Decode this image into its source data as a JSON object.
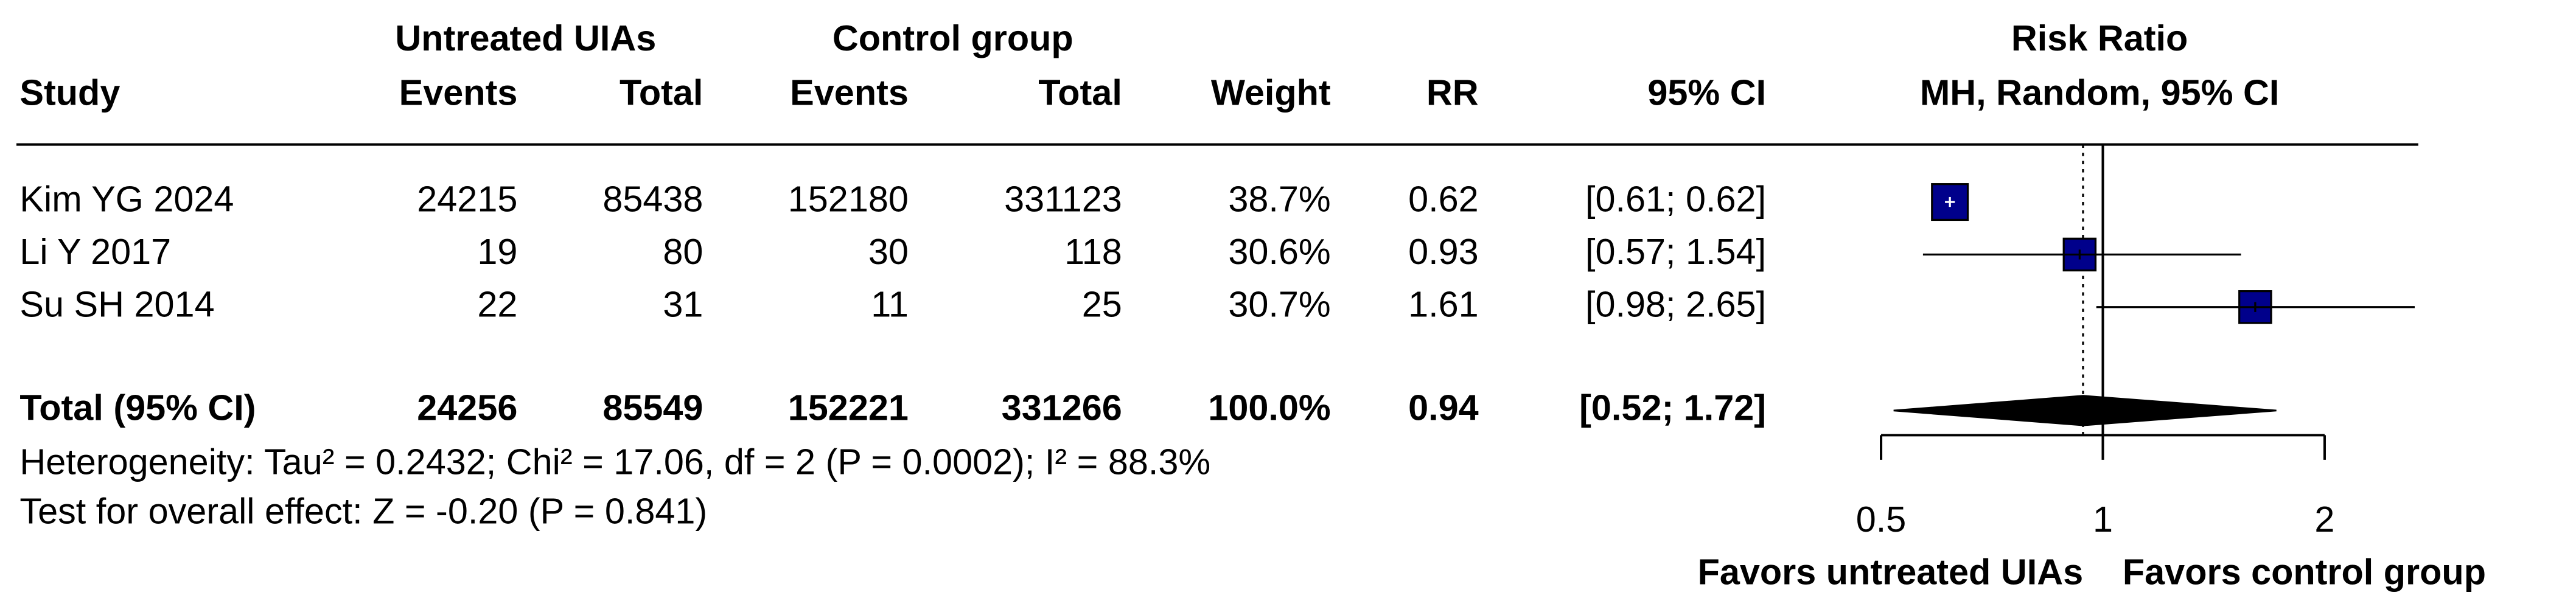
{
  "chart_data": {
    "type": "forest",
    "group_headers": [
      "Untreated UIAs",
      "Control group",
      "Risk Ratio"
    ],
    "columns": [
      "Study",
      "Events",
      "Total",
      "Events",
      "Total",
      "Weight",
      "RR",
      "95% CI",
      "MH, Random, 95% CI"
    ],
    "studies": [
      {
        "study": "Kim YG 2024",
        "events_1": 24215,
        "total_1": 85438,
        "events_2": 152180,
        "total_2": 331123,
        "weight": 38.7,
        "weight_label": "38.7%",
        "rr": 0.62,
        "ci": [
          0.61,
          0.62
        ],
        "ci_label": "[0.61; 0.62]"
      },
      {
        "study": "Li Y 2017",
        "events_1": 19,
        "total_1": 80,
        "events_2": 30,
        "total_2": 118,
        "weight": 30.6,
        "weight_label": "30.6%",
        "rr": 0.93,
        "ci": [
          0.57,
          1.54
        ],
        "ci_label": "[0.57; 1.54]"
      },
      {
        "study": "Su SH 2014",
        "events_1": 22,
        "total_1": 31,
        "events_2": 11,
        "total_2": 25,
        "weight": 30.7,
        "weight_label": "30.7%",
        "rr": 1.61,
        "ci": [
          0.98,
          2.65
        ],
        "ci_label": "[0.98; 2.65]"
      }
    ],
    "total": {
      "study": "Total (95% CI)",
      "events_1": 24256,
      "total_1": 85549,
      "events_2": 152221,
      "total_2": 331266,
      "weight": 100.0,
      "weight_label": "100.0%",
      "rr": 0.94,
      "ci": [
        0.52,
        1.72
      ],
      "ci_label": "[0.52; 1.72]"
    },
    "heterogeneity": "Heterogeneity: Tau² = 0.2432; Chi² = 17.06, df = 2 (P = 0.0002); I² = 88.3%",
    "overall_effect": "Test for overall effect: Z = -0.20 (P = 0.841)",
    "xlim": [
      0.5,
      2
    ],
    "xticks": [
      0.5,
      1,
      2
    ],
    "log_x": true,
    "axis_labels": [
      "Favors untreated UIAs",
      "Favors control group"
    ],
    "color": "#00008b",
    "diamond_color": "#000000"
  }
}
